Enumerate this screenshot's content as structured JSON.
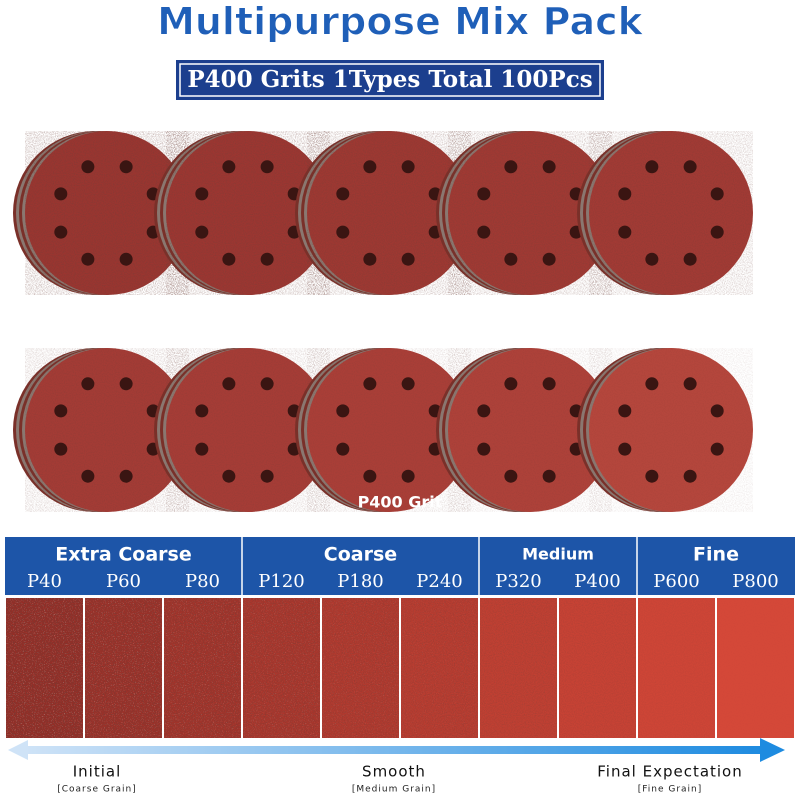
{
  "title": "Multipurpose Mix Pack",
  "subtitle": "P400 Grits 1Types Total 100Pcs",
  "disc_label": "P400 Grit",
  "groups": [
    {
      "name": "Extra Coarse",
      "grits": [
        "P40",
        "P60",
        "P80"
      ]
    },
    {
      "name": "Coarse",
      "grits": [
        "P120",
        "P180",
        "P240"
      ]
    },
    {
      "name": "Medium",
      "grits": [
        "P320",
        "P400"
      ]
    },
    {
      "name": "Fine",
      "grits": [
        "P600",
        "P800"
      ]
    }
  ],
  "scale": [
    {
      "label": "Initial",
      "note": "[Coarse Grain]"
    },
    {
      "label": "Smooth",
      "note": "[Medium Grain]"
    },
    {
      "label": "Final Expectation",
      "note": "[Fine Grain]"
    }
  ]
}
